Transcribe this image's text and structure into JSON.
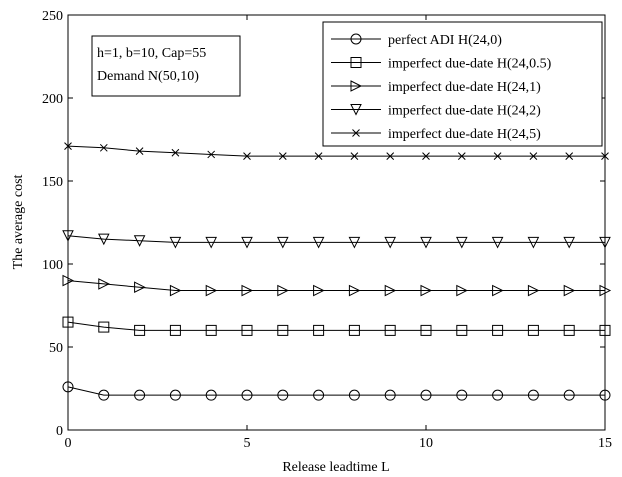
{
  "chart_data": {
    "type": "line",
    "xlabel": "Release leadtime L",
    "ylabel": "The average cost",
    "xlim": [
      0,
      15
    ],
    "ylim": [
      0,
      250
    ],
    "xticks": [
      0,
      5,
      10,
      15
    ],
    "yticks": [
      0,
      50,
      100,
      150,
      200,
      250
    ],
    "grid": false,
    "legend_position": "top-right",
    "x": [
      0,
      1,
      2,
      3,
      4,
      5,
      6,
      7,
      8,
      9,
      10,
      11,
      12,
      13,
      14,
      15
    ],
    "annotation": [
      "h=1, b=10, Cap=55",
      "Demand N(50,10)"
    ],
    "series": [
      {
        "name": "perfect ADI H(24,0)",
        "marker": "circle",
        "values": [
          26,
          21,
          21,
          21,
          21,
          21,
          21,
          21,
          21,
          21,
          21,
          21,
          21,
          21,
          21,
          21
        ]
      },
      {
        "name": "imperfect due-date H(24,0.5)",
        "marker": "square",
        "values": [
          65,
          62,
          60,
          60,
          60,
          60,
          60,
          60,
          60,
          60,
          60,
          60,
          60,
          60,
          60,
          60
        ]
      },
      {
        "name": "imperfect due-date H(24,1)",
        "marker": "triangle-right",
        "values": [
          90,
          88,
          86,
          84,
          84,
          84,
          84,
          84,
          84,
          84,
          84,
          84,
          84,
          84,
          84,
          84
        ]
      },
      {
        "name": "imperfect due-date H(24,2)",
        "marker": "triangle-down",
        "values": [
          117,
          115,
          114,
          113,
          113,
          113,
          113,
          113,
          113,
          113,
          113,
          113,
          113,
          113,
          113,
          113
        ]
      },
      {
        "name": "imperfect due-date H(24,5)",
        "marker": "x",
        "values": [
          171,
          170,
          168,
          167,
          166,
          165,
          165,
          165,
          165,
          165,
          165,
          165,
          165,
          165,
          165,
          165
        ]
      }
    ]
  }
}
